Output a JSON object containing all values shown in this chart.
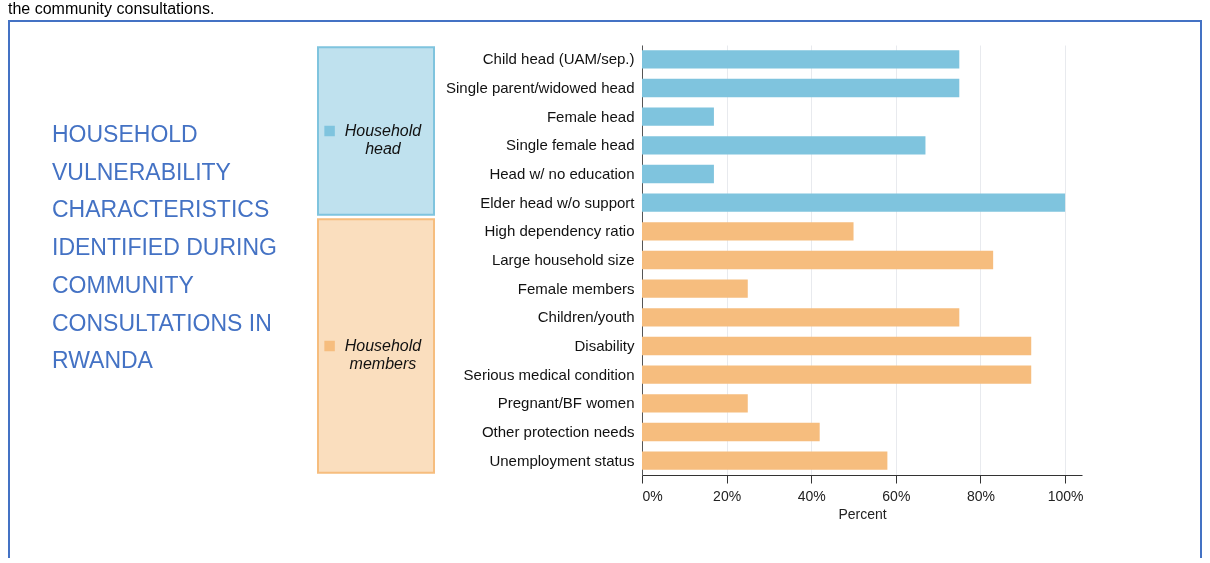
{
  "chart_data": {
    "type": "bar",
    "orientation": "horizontal",
    "title": "HOUSEHOLD VULNERABILITY CHARACTERISTICS IDENTIFIED DURING COMMUNITY CONSULTATIONS IN RWANDA",
    "annotations": [
      "the community consultations."
    ],
    "xlabel": "Percent",
    "categories": [
      "Child head (UAM/sep.)",
      "Single parent/widowed head",
      "Female head",
      "Single female head",
      "Head w/ no education",
      "Elder head w/o support",
      "High dependency ratio",
      "Large household size",
      "Female members",
      "Children/youth",
      "Disability",
      "Serious medical condition",
      "Pregnant/BF women",
      "Other protection needs",
      "Unemployment status"
    ],
    "series": [
      {
        "name": "Household head",
        "color": "#7fc4de",
        "values": [
          75,
          75,
          17,
          67,
          17,
          100,
          null,
          null,
          null,
          null,
          null,
          null,
          null,
          null,
          null
        ]
      },
      {
        "name": "Household members",
        "color": "#f6bd7e",
        "values": [
          null,
          null,
          null,
          null,
          null,
          null,
          50,
          83,
          25,
          75,
          92,
          92,
          25,
          42,
          58
        ]
      }
    ],
    "xlim": [
      0,
      104
    ],
    "xticks": [
      {
        "value": 0,
        "label": "0%"
      },
      {
        "value": 20,
        "label": "20%"
      },
      {
        "value": 40,
        "label": "40%"
      },
      {
        "value": 60,
        "label": "60%"
      },
      {
        "value": 80,
        "label": "80%"
      },
      {
        "value": 100,
        "label": "100%"
      }
    ],
    "grid": "x",
    "legend": "left"
  }
}
